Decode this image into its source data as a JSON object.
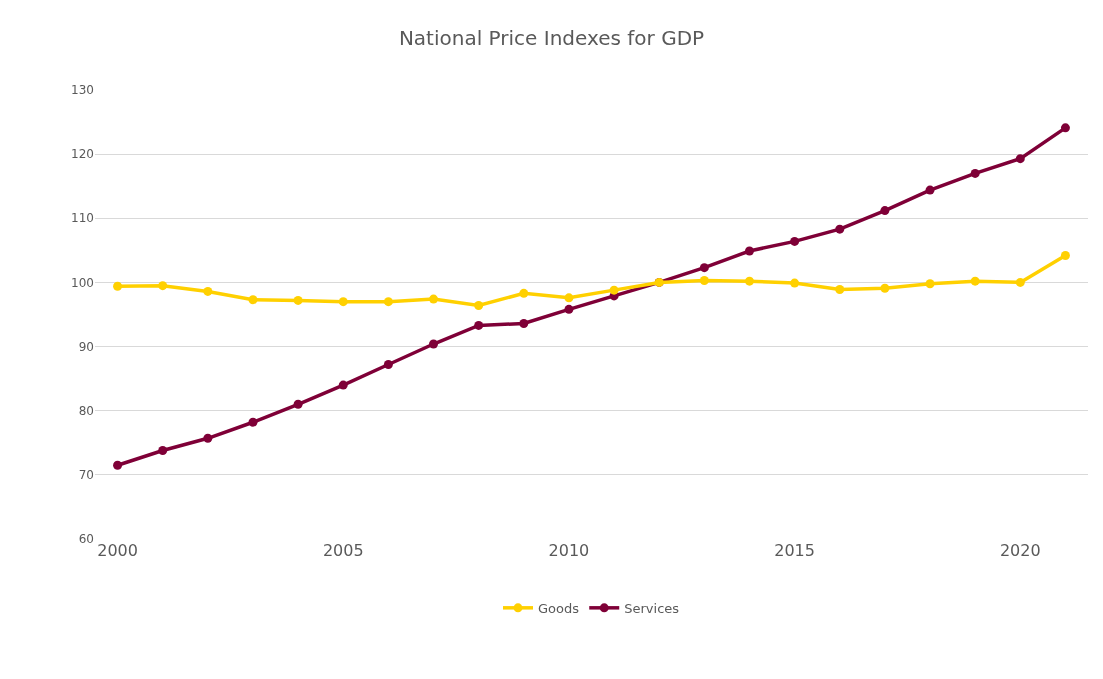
{
  "chart_data": {
    "type": "line",
    "title": "National Price Indexes for GDP",
    "x": [
      2000,
      2001,
      2002,
      2003,
      2004,
      2005,
      2006,
      2007,
      2008,
      2009,
      2010,
      2011,
      2012,
      2013,
      2014,
      2015,
      2016,
      2017,
      2018,
      2019,
      2020,
      2021
    ],
    "series": [
      {
        "name": "Goods",
        "color": "#ffd000",
        "values": [
          99.4,
          99.5,
          98.6,
          97.3,
          97.2,
          97.0,
          97.0,
          97.4,
          96.4,
          98.3,
          97.6,
          98.8,
          100.0,
          100.3,
          100.2,
          99.9,
          98.9,
          99.1,
          99.8,
          100.2,
          100.0,
          104.2
        ]
      },
      {
        "name": "Services",
        "color": "#7f0037",
        "values": [
          71.5,
          73.8,
          75.7,
          78.2,
          81.0,
          84.0,
          87.2,
          90.4,
          93.3,
          93.6,
          95.8,
          97.9,
          100.0,
          102.3,
          104.9,
          106.4,
          108.3,
          111.2,
          114.4,
          117.0,
          119.3,
          124.1
        ]
      }
    ],
    "xlim": [
      1999.5,
      2021.5
    ],
    "xticks": [
      2000,
      2005,
      2010,
      2015,
      2020
    ],
    "ylim": [
      60,
      130
    ],
    "yticks": [
      60,
      70,
      80,
      90,
      100,
      110,
      120,
      130
    ],
    "grid": "y",
    "legend": "bottom",
    "marker": "circle",
    "line_style": "solid"
  }
}
